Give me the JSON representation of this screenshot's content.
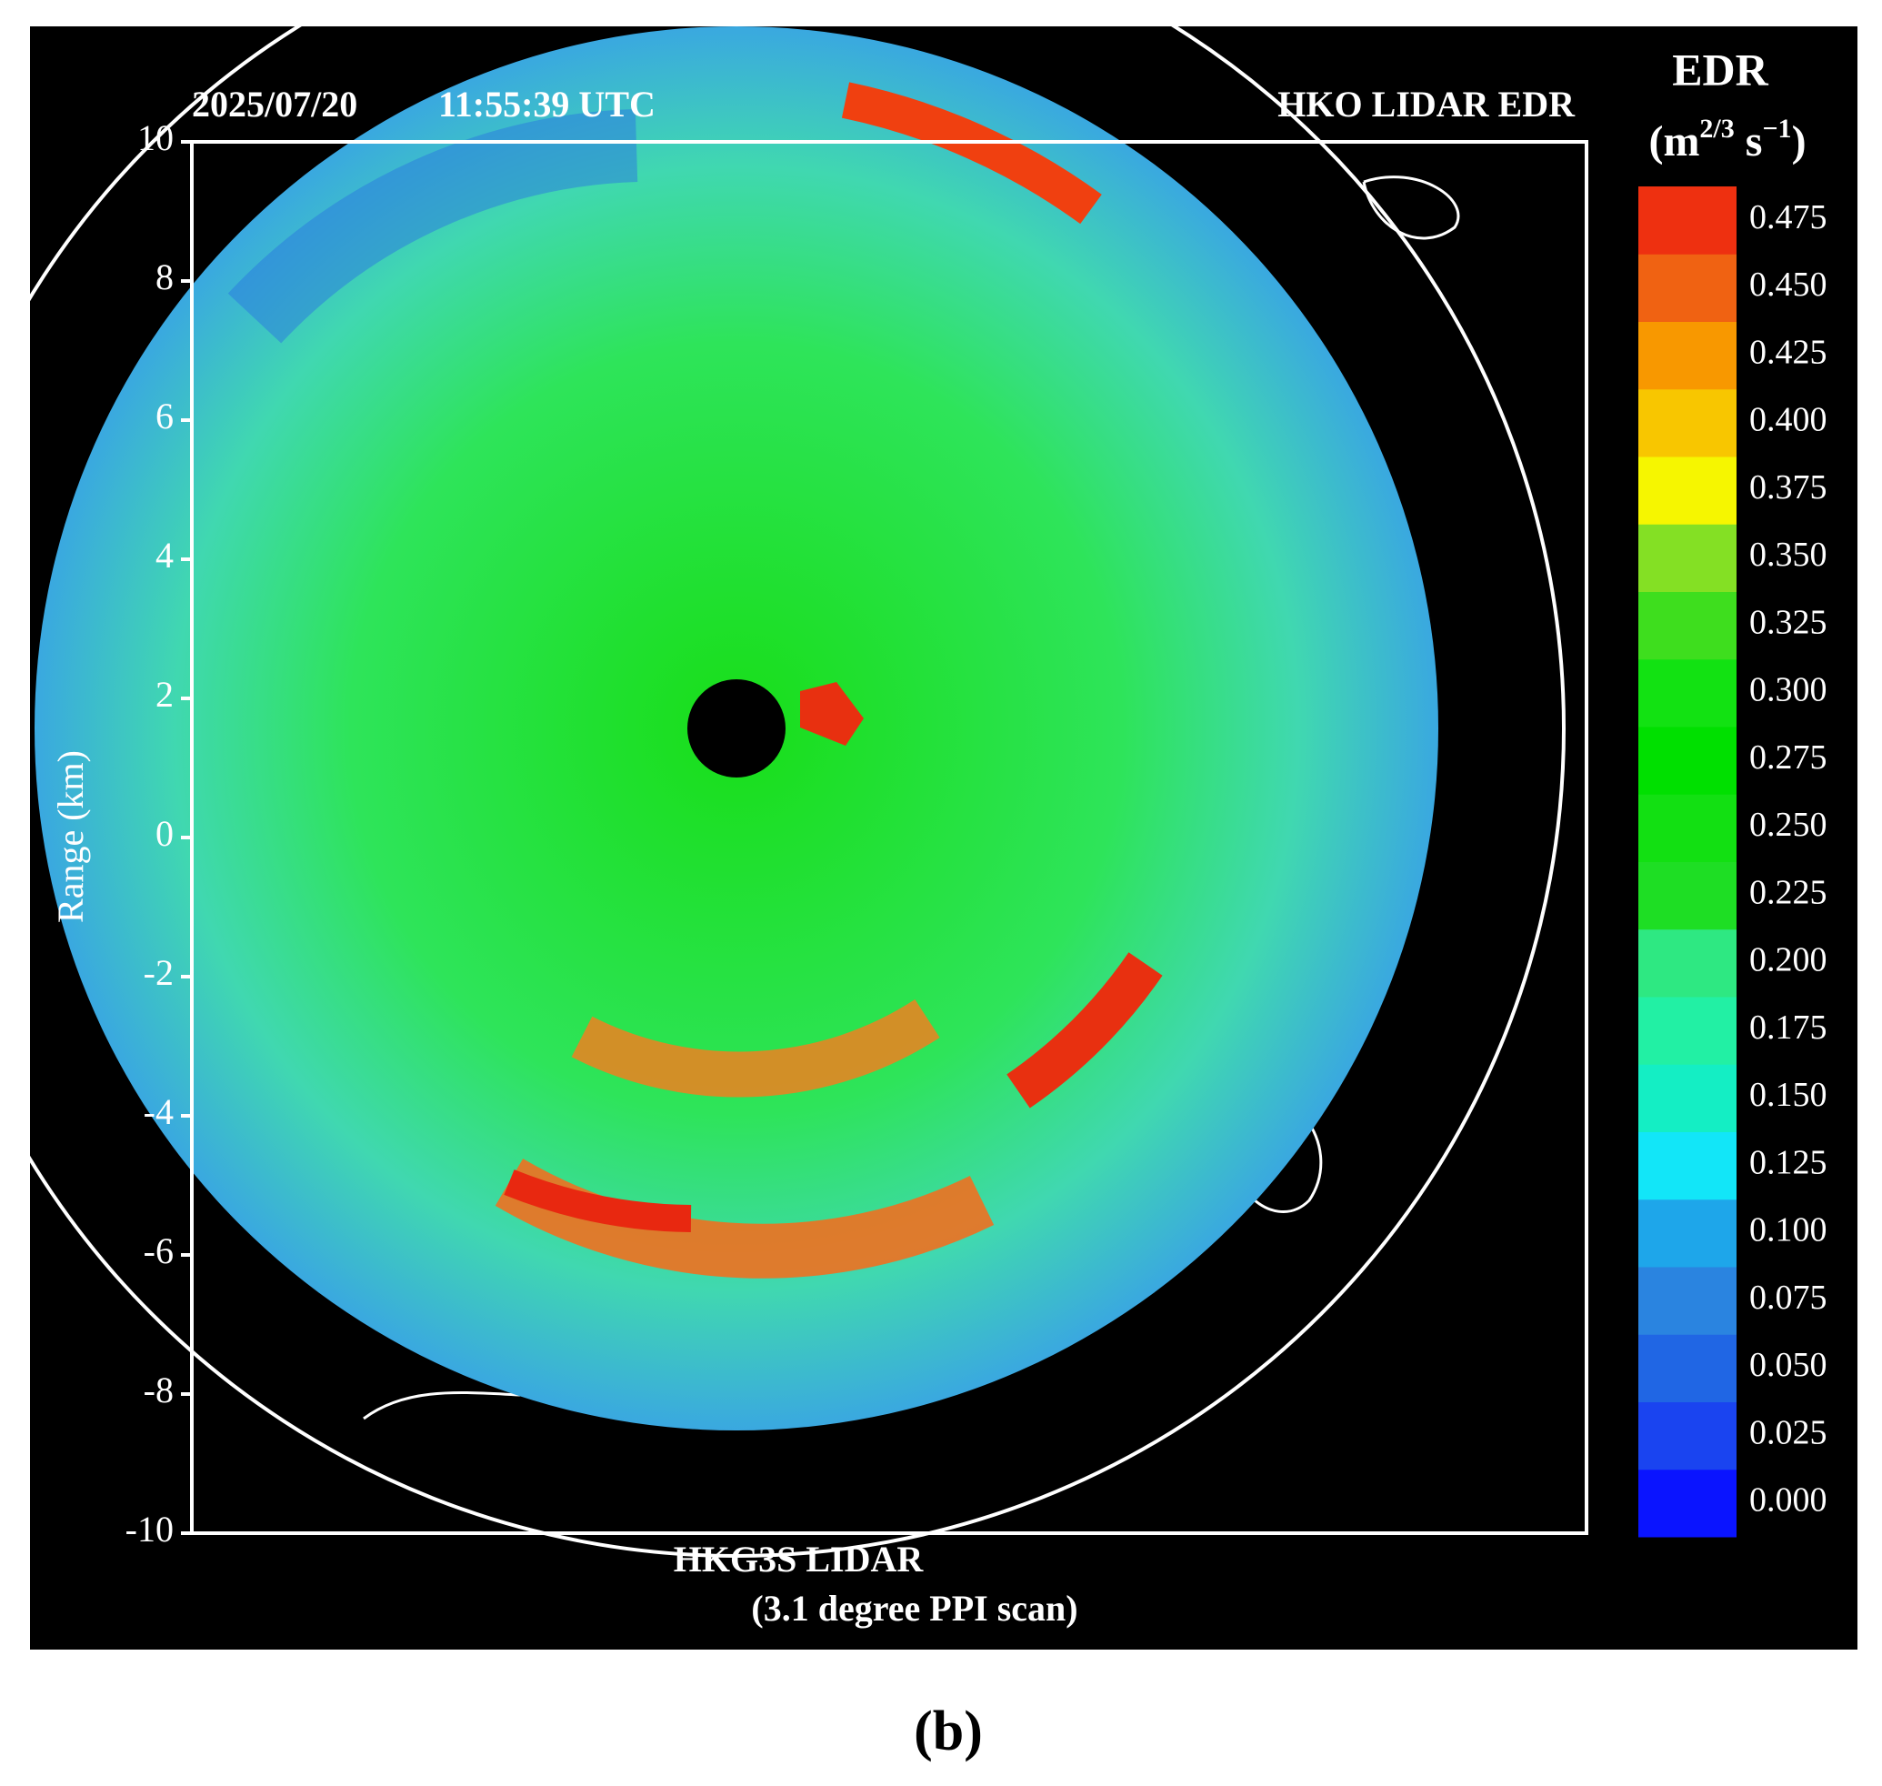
{
  "chart_data": {
    "type": "heatmap",
    "date": "2025/07/20",
    "time": "11:55:39 UTC",
    "product": "HKO LIDAR EDR",
    "ylabel": "Range (km)",
    "xlabel": "HKG3S LIDAR",
    "scan": "(3.1 degree PPI scan)",
    "panel_label": "(b)",
    "ylim": [
      -10,
      10
    ],
    "yticks": [
      10,
      8,
      6,
      4,
      2,
      0,
      -2,
      -4,
      -6,
      -8,
      -10
    ],
    "colorbar": {
      "title": "EDR",
      "unit": {
        "open": "(m",
        "exp1": "2/3",
        "mid": " s",
        "exp2": "−1",
        "close": ")"
      },
      "ticks": [
        {
          "value": 0,
          "label": "0.000"
        },
        {
          "value": 0.025,
          "label": "0.025"
        },
        {
          "value": 0.05,
          "label": "0.050"
        },
        {
          "value": 0.075,
          "label": "0.075"
        },
        {
          "value": 0.1,
          "label": "0.100"
        },
        {
          "value": 0.125,
          "label": "0.125"
        },
        {
          "value": 0.15,
          "label": "0.150"
        },
        {
          "value": 0.175,
          "label": "0.175"
        },
        {
          "value": 0.2,
          "label": "0.200"
        },
        {
          "value": 0.225,
          "label": "0.225"
        },
        {
          "value": 0.25,
          "label": "0.250"
        },
        {
          "value": 0.275,
          "label": "0.275"
        },
        {
          "value": 0.3,
          "label": "0.300"
        },
        {
          "value": 0.325,
          "label": "0.325"
        },
        {
          "value": 0.35,
          "label": "0.350"
        },
        {
          "value": 0.375,
          "label": "0.375"
        },
        {
          "value": 0.4,
          "label": "0.400"
        },
        {
          "value": 0.425,
          "label": "0.425"
        },
        {
          "value": 0.45,
          "label": "0.450"
        },
        {
          "value": 0.475,
          "label": "0.475"
        }
      ],
      "colors": [
        "#0a14ff",
        "#1a44f0",
        "#2066e4",
        "#2a84e0",
        "#1ea6ea",
        "#12e6f8",
        "#14eec4",
        "#22f0a4",
        "#2ee882",
        "#1ede24",
        "#12e012",
        "#00e000",
        "#12e212",
        "#3ede1e",
        "#84e024",
        "#f6f600",
        "#f8c600",
        "#f89800",
        "#f06212",
        "#ee3010"
      ]
    }
  }
}
